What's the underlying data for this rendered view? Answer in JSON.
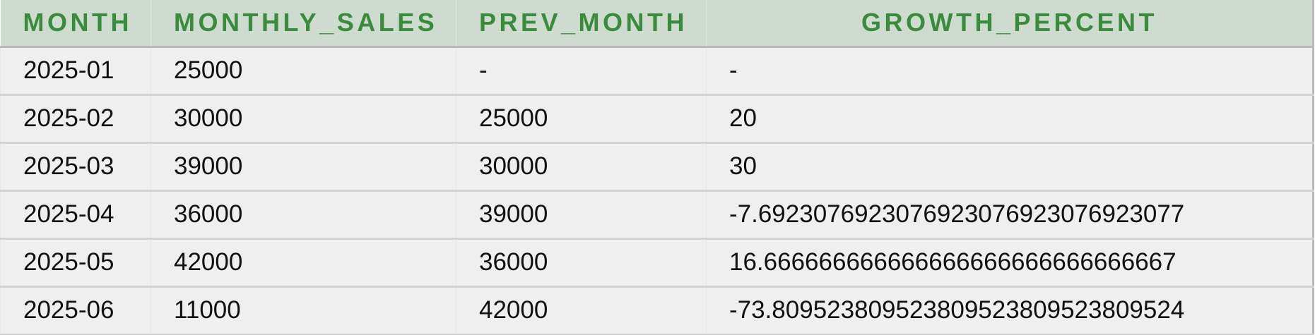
{
  "table": {
    "headers": [
      "MONTH",
      "MONTHLY_SALES",
      "PREV_MONTH",
      "GROWTH_PERCENT"
    ],
    "rows": [
      [
        "2025-01",
        "25000",
        "-",
        "-"
      ],
      [
        "2025-02",
        "30000",
        "25000",
        "20"
      ],
      [
        "2025-03",
        "39000",
        "30000",
        "30"
      ],
      [
        "2025-04",
        "36000",
        "39000",
        "-7.6923076923076923076923076923077"
      ],
      [
        "2025-05",
        "42000",
        "36000",
        "16.666666666666666666666666666667"
      ],
      [
        "2025-06",
        "11000",
        "42000",
        "-73.809523809523809523809523809524"
      ]
    ]
  }
}
